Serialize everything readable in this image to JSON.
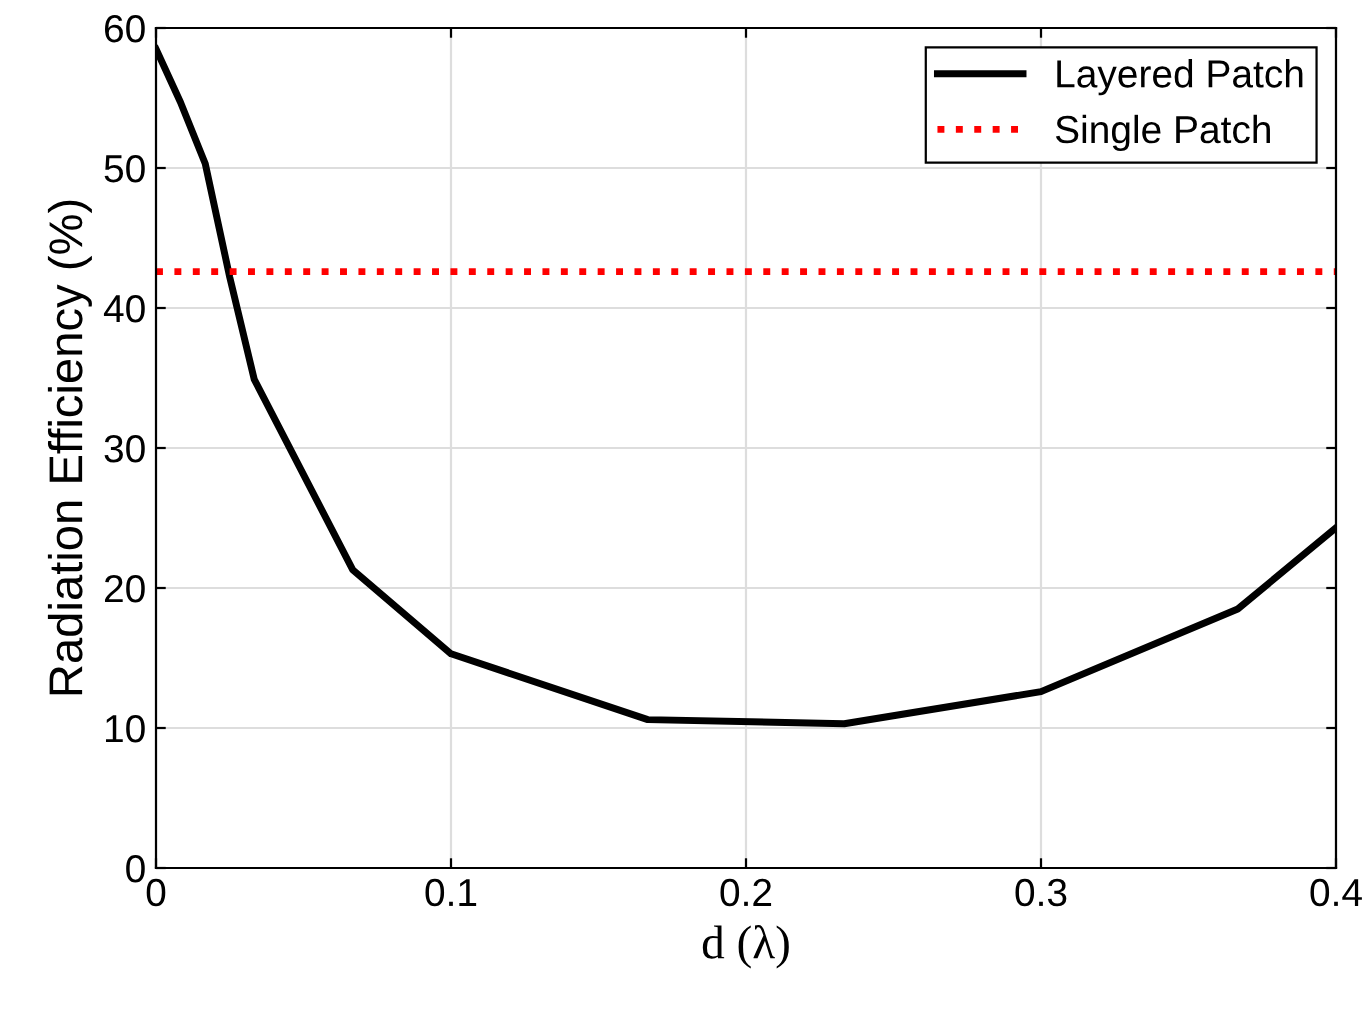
{
  "chart_data": {
    "type": "line",
    "xlabel": "d (λ)",
    "ylabel": "Radiation Efficiency (%)",
    "xlim": [
      0,
      0.4
    ],
    "xticks": [
      0,
      0.1,
      0.2,
      0.3,
      0.4
    ],
    "ylim": [
      0,
      60
    ],
    "yticks": [
      0,
      10,
      20,
      30,
      40,
      50,
      60
    ],
    "grid": true,
    "legend": "top right",
    "series": [
      {
        "name": "Layered Patch",
        "color": "#000000",
        "line_style": "solid",
        "x": [
          0,
          0.0083,
          0.0167,
          0.025,
          0.0333,
          0.0667,
          0.1,
          0.1667,
          0.2333,
          0.3,
          0.3667,
          0.4
        ],
        "values": [
          58.5,
          54.7,
          50.3,
          42.2,
          34.9,
          21.3,
          15.3,
          10.6,
          10.3,
          12.6,
          18.5,
          24.3
        ]
      },
      {
        "name": "Single Patch",
        "color": "#ff0000",
        "line_style": "dotted",
        "x": [
          0,
          0.4
        ],
        "values": [
          42.6,
          42.6
        ]
      }
    ]
  }
}
